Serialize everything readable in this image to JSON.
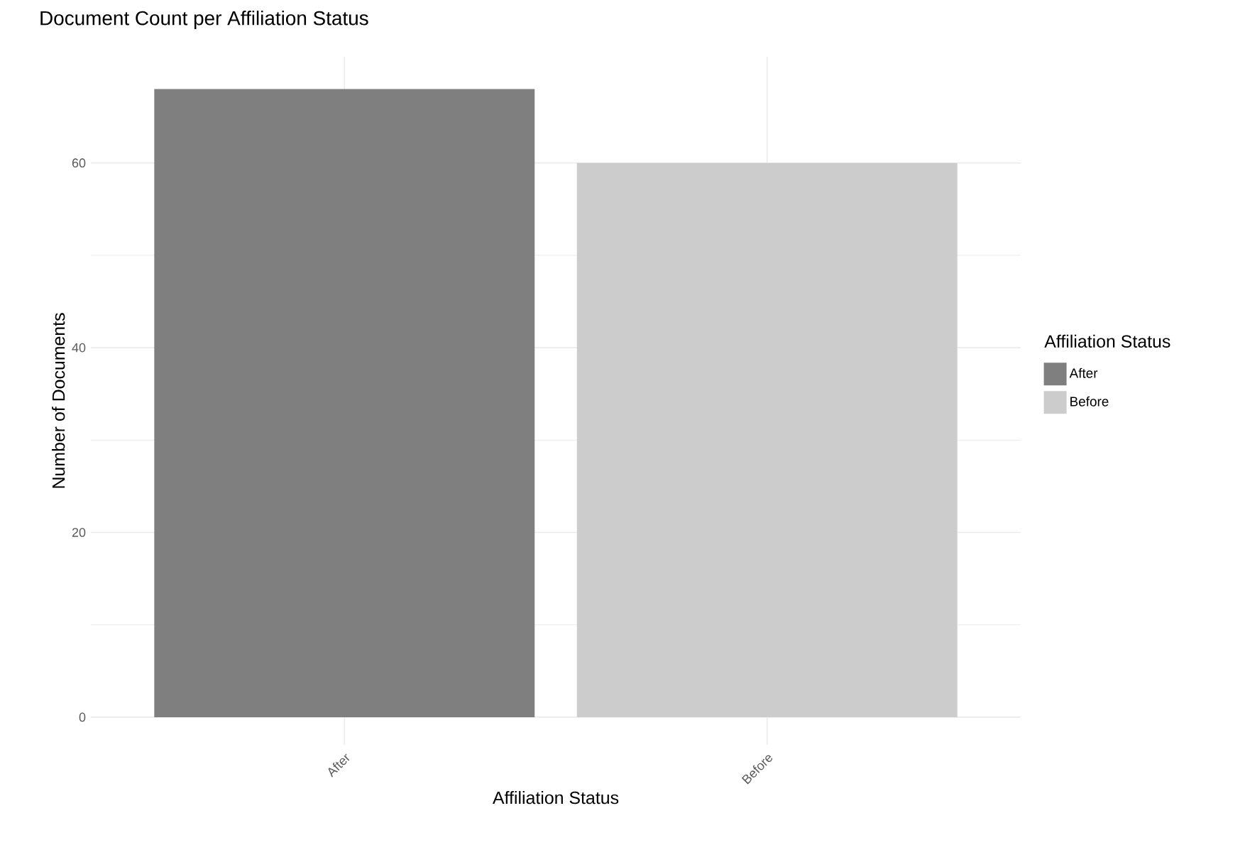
{
  "chart_data": {
    "type": "bar",
    "title": "Document Count per Affiliation Status",
    "xlabel": "Affiliation Status",
    "ylabel": "Number of Documents",
    "legend_title": "Affiliation Status",
    "categories": [
      "After",
      "Before"
    ],
    "series": [
      {
        "name": "After",
        "color": "#7f7f7f",
        "values": [
          68,
          null
        ]
      },
      {
        "name": "Before",
        "color": "#cccccc",
        "values": [
          null,
          60
        ]
      }
    ],
    "ylim": [
      -3,
      71.5
    ],
    "yticks": [
      0,
      20,
      40,
      60
    ],
    "grid": true,
    "legend": "right"
  }
}
